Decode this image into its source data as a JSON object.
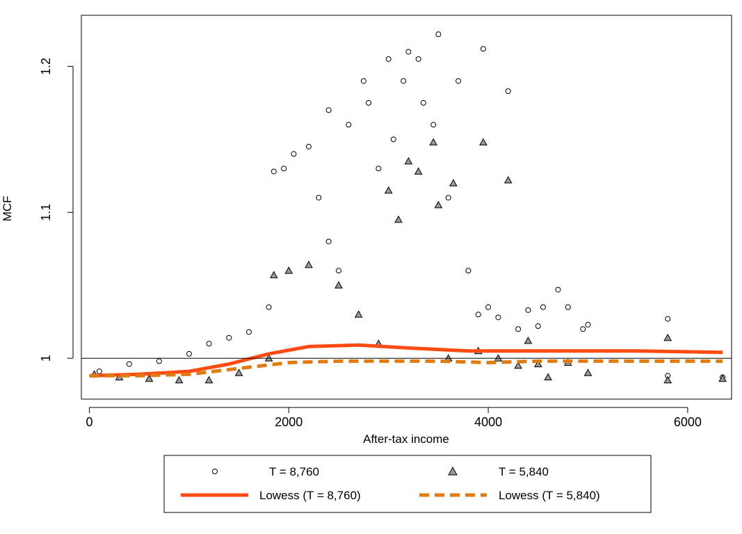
{
  "chart_data": {
    "type": "scatter",
    "title": "",
    "xlabel": "After-tax income",
    "ylabel": "MCF",
    "xlim": [
      -80,
      6440
    ],
    "ylim": [
      0.972,
      1.235
    ],
    "x_ticks": [
      0,
      2000,
      4000,
      6000
    ],
    "x_tick_labels": [
      "0",
      "2000",
      "4000",
      "6000"
    ],
    "y_ticks": [
      1.0,
      1.1,
      1.2
    ],
    "y_tick_labels": [
      "1",
      "1.1",
      "1.2"
    ],
    "reference_line_y": 1.0,
    "grid": false,
    "legend_position": "bottom",
    "series": [
      {
        "name": "T = 8,760",
        "kind": "points",
        "marker": "open-circle",
        "color": "#000000",
        "fill": "#ffffff",
        "points": [
          [
            100,
            0.991
          ],
          [
            400,
            0.996
          ],
          [
            700,
            0.998
          ],
          [
            1000,
            1.003
          ],
          [
            1200,
            1.01
          ],
          [
            1400,
            1.014
          ],
          [
            1600,
            1.018
          ],
          [
            1800,
            1.035
          ],
          [
            1850,
            1.128
          ],
          [
            1950,
            1.13
          ],
          [
            2050,
            1.14
          ],
          [
            2200,
            1.145
          ],
          [
            2300,
            1.11
          ],
          [
            2400,
            1.08
          ],
          [
            2500,
            1.06
          ],
          [
            2400,
            1.17
          ],
          [
            2600,
            1.16
          ],
          [
            2750,
            1.19
          ],
          [
            2800,
            1.175
          ],
          [
            2900,
            1.13
          ],
          [
            3000,
            1.205
          ],
          [
            3050,
            1.15
          ],
          [
            3150,
            1.19
          ],
          [
            3200,
            1.21
          ],
          [
            3300,
            1.205
          ],
          [
            3350,
            1.175
          ],
          [
            3450,
            1.16
          ],
          [
            3500,
            1.222
          ],
          [
            3600,
            1.11
          ],
          [
            3700,
            1.19
          ],
          [
            3800,
            1.06
          ],
          [
            3950,
            1.212
          ],
          [
            3900,
            1.03
          ],
          [
            4000,
            1.035
          ],
          [
            4100,
            1.028
          ],
          [
            4200,
            1.183
          ],
          [
            4300,
            1.02
          ],
          [
            4400,
            1.033
          ],
          [
            4500,
            1.022
          ],
          [
            4550,
            1.035
          ],
          [
            4700,
            1.047
          ],
          [
            4800,
            1.035
          ],
          [
            4950,
            1.02
          ],
          [
            5000,
            1.023
          ],
          [
            5800,
            1.027
          ],
          [
            5800,
            0.988
          ],
          [
            6350,
            0.987
          ]
        ]
      },
      {
        "name": "T = 5,840",
        "kind": "points",
        "marker": "filled-triangle",
        "color": "#000000",
        "fill": "#999999",
        "points": [
          [
            50,
            0.989
          ],
          [
            300,
            0.987
          ],
          [
            600,
            0.986
          ],
          [
            900,
            0.985
          ],
          [
            1200,
            0.985
          ],
          [
            1500,
            0.99
          ],
          [
            1800,
            1.0
          ],
          [
            1850,
            1.057
          ],
          [
            2000,
            1.06
          ],
          [
            2200,
            1.064
          ],
          [
            2500,
            1.05
          ],
          [
            2700,
            1.03
          ],
          [
            2900,
            1.01
          ],
          [
            3000,
            1.115
          ],
          [
            3100,
            1.095
          ],
          [
            3200,
            1.135
          ],
          [
            3300,
            1.128
          ],
          [
            3450,
            1.148
          ],
          [
            3500,
            1.105
          ],
          [
            3650,
            1.12
          ],
          [
            3600,
            1.0
          ],
          [
            3900,
            1.005
          ],
          [
            3950,
            1.148
          ],
          [
            4100,
            1.0
          ],
          [
            4200,
            1.122
          ],
          [
            4300,
            0.995
          ],
          [
            4400,
            1.012
          ],
          [
            4500,
            0.996
          ],
          [
            4600,
            0.987
          ],
          [
            4800,
            0.997
          ],
          [
            5000,
            0.99
          ],
          [
            5800,
            1.014
          ],
          [
            5800,
            0.985
          ],
          [
            6350,
            0.986
          ]
        ]
      },
      {
        "name": "Lowess (T = 8,760)",
        "kind": "line",
        "style": "solid",
        "color": "#ff4a12",
        "points": [
          [
            0,
            0.988
          ],
          [
            500,
            0.989
          ],
          [
            1000,
            0.991
          ],
          [
            1400,
            0.996
          ],
          [
            1800,
            1.003
          ],
          [
            2200,
            1.008
          ],
          [
            2700,
            1.009
          ],
          [
            3200,
            1.007
          ],
          [
            3800,
            1.005
          ],
          [
            4500,
            1.005
          ],
          [
            5500,
            1.005
          ],
          [
            6350,
            1.004
          ]
        ]
      },
      {
        "name": "Lowess (T = 5,840)",
        "kind": "line",
        "style": "dashed",
        "color": "#e07b10",
        "points": [
          [
            0,
            0.988
          ],
          [
            500,
            0.988
          ],
          [
            1000,
            0.989
          ],
          [
            1500,
            0.993
          ],
          [
            2000,
            0.997
          ],
          [
            2500,
            0.998
          ],
          [
            3000,
            0.998
          ],
          [
            3500,
            0.998
          ],
          [
            4000,
            0.997
          ],
          [
            4500,
            0.998
          ],
          [
            5500,
            0.998
          ],
          [
            6350,
            0.998
          ]
        ]
      }
    ]
  }
}
